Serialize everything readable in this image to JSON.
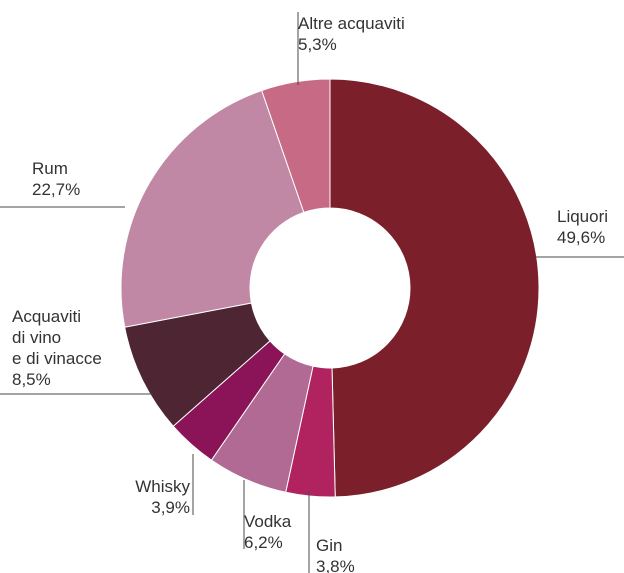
{
  "chart_data": {
    "type": "pie",
    "variant": "donut",
    "title": "",
    "legend": "none",
    "slices": [
      {
        "name": "Liquori",
        "value": 49.6,
        "label": "49,6%",
        "label_lines": [
          "Liquori"
        ],
        "color": "#7b1f2b"
      },
      {
        "name": "Gin",
        "value": 3.8,
        "label": "3,8%",
        "label_lines": [
          "Gin"
        ],
        "color": "#b0235e"
      },
      {
        "name": "Vodka",
        "value": 6.2,
        "label": "6,2%",
        "label_lines": [
          "Vodka"
        ],
        "color": "#b06a93"
      },
      {
        "name": "Whisky",
        "value": 3.9,
        "label": "3,9%",
        "label_lines": [
          "Whisky"
        ],
        "color": "#8a1457"
      },
      {
        "name": "Acquaviti di vino e di vinacce",
        "value": 8.5,
        "label": "8,5%",
        "label_lines": [
          "Acquaviti",
          "di vino",
          "e di vinacce"
        ],
        "color": "#4e2532"
      },
      {
        "name": "Rum",
        "value": 22.7,
        "label": "22,7%",
        "label_lines": [
          "Rum"
        ],
        "color": "#c088a5"
      },
      {
        "name": "Altre acquaviti",
        "value": 5.3,
        "label": "5,3%",
        "label_lines": [
          "Altre acquaviti"
        ],
        "color": "#c76a85"
      }
    ]
  }
}
